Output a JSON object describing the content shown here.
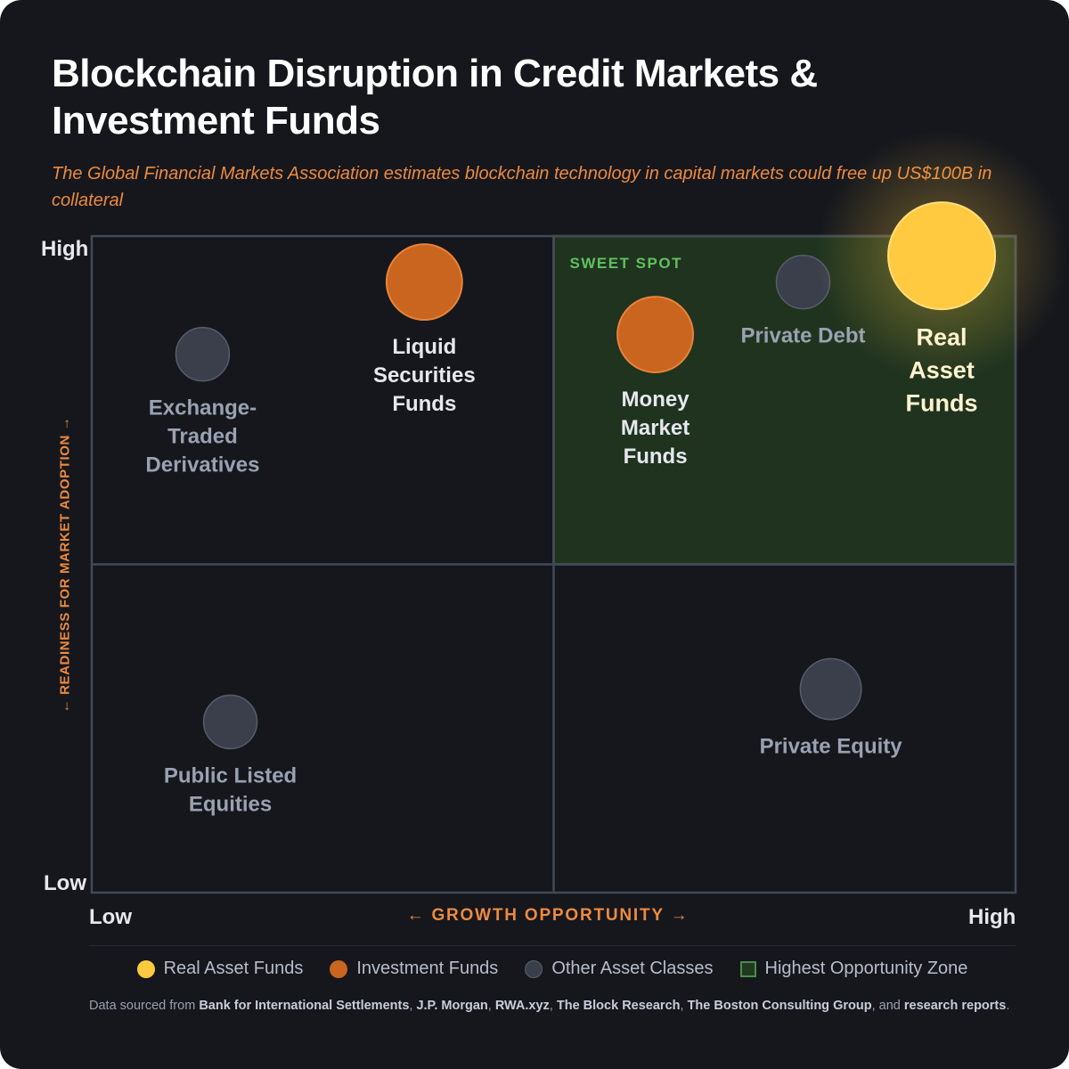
{
  "header": {
    "title": "Blockchain Disruption in Credit Markets & Investment Funds",
    "subtitle": "The Global Financial Markets Association estimates blockchain technology in capital markets could free up US$100B in collateral"
  },
  "chart_data": {
    "type": "scatter",
    "title": "Blockchain Disruption in Credit Markets & Investment Funds",
    "xlabel": "← GROWTH OPPORTUNITY →",
    "ylabel": "← READINESS FOR MARKET ADOPTION →",
    "xlim": [
      0,
      100
    ],
    "ylim": [
      0,
      100
    ],
    "x_ticks": {
      "low": "Low",
      "high": "High"
    },
    "y_ticks": {
      "low": "Low",
      "high": "High"
    },
    "quadrant_split": {
      "x": 50,
      "y": 50
    },
    "highlight_zone": {
      "label": "SWEET SPOT",
      "x": [
        50,
        100
      ],
      "y": [
        50,
        100
      ]
    },
    "categories": {
      "real": {
        "name": "Real Asset Funds",
        "color": "#ffc940"
      },
      "investment": {
        "name": "Investment Funds",
        "color": "#c9651f"
      },
      "other": {
        "name": "Other Asset Classes",
        "color": "#3a3f4b"
      }
    },
    "points": [
      {
        "label": [
          "Exchange-",
          "Traded",
          "Derivatives"
        ],
        "x": 12,
        "y": 82,
        "size": 1,
        "category": "other"
      },
      {
        "label": [
          "Liquid",
          "Securities",
          "Funds"
        ],
        "x": 36,
        "y": 93,
        "size": 2,
        "category": "investment"
      },
      {
        "label": [
          "Money",
          "Market",
          "Funds"
        ],
        "x": 61,
        "y": 85,
        "size": 2,
        "category": "investment"
      },
      {
        "label": [
          "Private Debt"
        ],
        "x": 77,
        "y": 93,
        "size": 1,
        "category": "other"
      },
      {
        "label": [
          "Real",
          "Asset",
          "Funds"
        ],
        "x": 92,
        "y": 97,
        "size": 4,
        "category": "real"
      },
      {
        "label": [
          "Public Listed",
          "Equities"
        ],
        "x": 15,
        "y": 26,
        "size": 1,
        "category": "other"
      },
      {
        "label": [
          "Private Equity"
        ],
        "x": 80,
        "y": 31,
        "size": 1.3,
        "category": "other"
      }
    ]
  },
  "legend": {
    "items": [
      {
        "label": "Real Asset Funds",
        "color": "#ffc940"
      },
      {
        "label": "Investment Funds",
        "color": "#c9651f"
      },
      {
        "label": "Other Asset Classes",
        "color": "#3a3f4b"
      },
      {
        "label": "Highest Opportunity Zone",
        "color": "#4d8a4d"
      }
    ]
  },
  "source": {
    "prefix": "Data sourced from",
    "sources": [
      "Bank for International Settlements",
      "J.P. Morgan",
      "RWA.xyz",
      "The Block Research",
      "The Boston Consulting Group"
    ],
    "connector": "and",
    "last": "research reports"
  }
}
